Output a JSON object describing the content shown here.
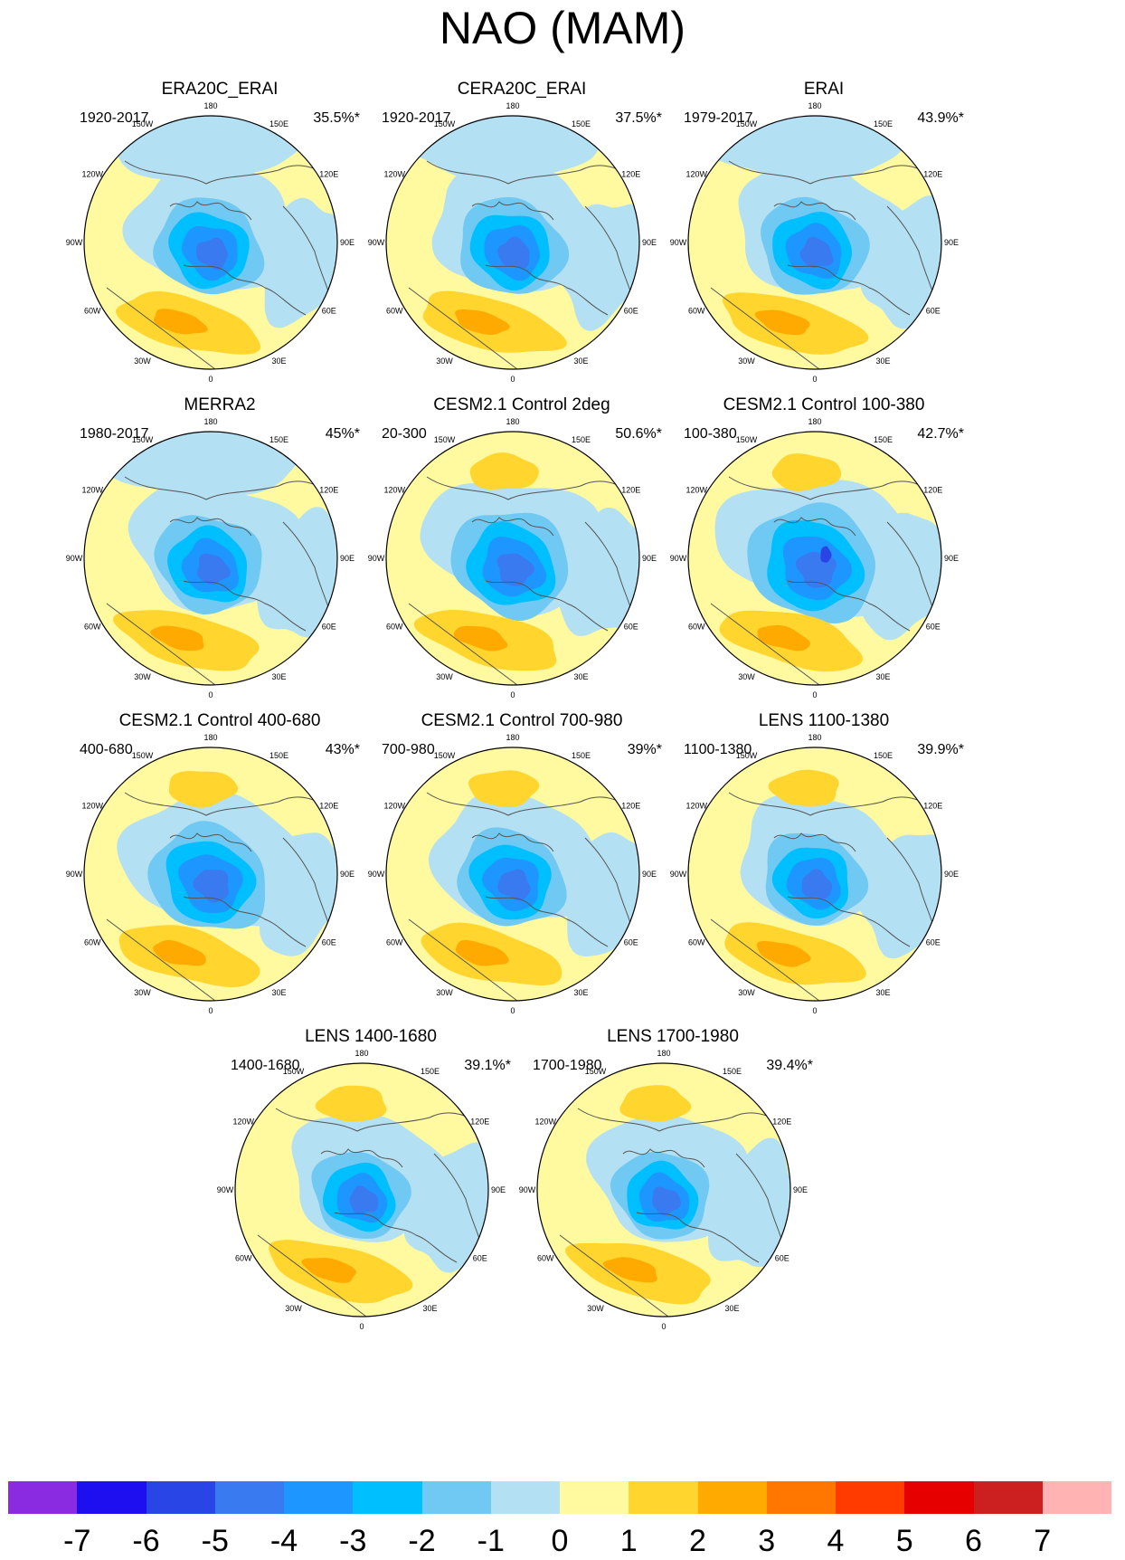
{
  "title": "NAO (MAM)",
  "panels": [
    {
      "title": "ERA20C_ERAI",
      "period": "1920-2017",
      "percent": "35.5%*",
      "strength": 1.0,
      "variant": 0
    },
    {
      "title": "CERA20C_ERAI",
      "period": "1920-2017",
      "percent": "37.5%*",
      "strength": 1.0,
      "variant": 1
    },
    {
      "title": "ERAI",
      "period": "1979-2017",
      "percent": "43.9%*",
      "strength": 1.0,
      "variant": 2
    },
    {
      "title": "MERRA2",
      "period": "1980-2017",
      "percent": "45%*",
      "strength": 1.0,
      "variant": 3
    },
    {
      "title": "CESM2.1 Control 2deg",
      "period": "20-300",
      "percent": "50.6%*",
      "strength": 1.1,
      "variant": 4
    },
    {
      "title": "CESM2.1 Control 100-380",
      "period": "100-380",
      "percent": "42.7%*",
      "strength": 1.2,
      "variant": 5
    },
    {
      "title": "CESM2.1 Control 400-680",
      "period": "400-680",
      "percent": "43%*",
      "strength": 1.1,
      "variant": 6
    },
    {
      "title": "CESM2.1 Control 700-980",
      "period": "700-980",
      "percent": "39%*",
      "strength": 1.0,
      "variant": 7
    },
    {
      "title": "LENS 1100-1380",
      "period": "1100-1380",
      "percent": "39.9%*",
      "strength": 0.95,
      "variant": 8
    },
    {
      "title": "LENS 1400-1680",
      "period": "1400-1680",
      "percent": "39.1%*",
      "strength": 0.9,
      "variant": 9
    },
    {
      "title": "LENS 1700-1980",
      "period": "1700-1980",
      "percent": "39.4%*",
      "strength": 0.9,
      "variant": 10
    }
  ],
  "lon_labels": [
    "180",
    "150E",
    "120E",
    "90E",
    "60E",
    "30E",
    "0",
    "30W",
    "60W",
    "90W",
    "120W",
    "150W"
  ],
  "colorbar": {
    "colors": [
      "#8a2be2",
      "#1e0ff0",
      "#2a45e6",
      "#3a7af0",
      "#1e96ff",
      "#00bfff",
      "#6fc9f2",
      "#b3e0f2",
      "#fff9a0",
      "#ffd52e",
      "#ffaa00",
      "#ff7700",
      "#ff3b00",
      "#e60000",
      "#cc1f1f",
      "#ffb3b3"
    ],
    "labels": [
      "-7",
      "-6",
      "-5",
      "-4",
      "-3",
      "-2",
      "-1",
      "0",
      "1",
      "2",
      "3",
      "4",
      "5",
      "6",
      "7"
    ]
  }
}
